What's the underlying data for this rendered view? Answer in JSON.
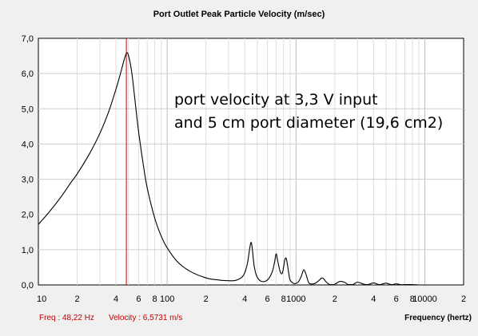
{
  "chart_data": {
    "type": "line",
    "title": "Port Outlet Peak Particle Velocity (m/sec)",
    "xlabel": "Frequency (hertz)",
    "ylabel": "",
    "x_scale": "log",
    "xlim": [
      10,
      20000
    ],
    "ylim": [
      0,
      7
    ],
    "y_ticks": [
      "0,0",
      "1,0",
      "2,0",
      "3,0",
      "4,0",
      "5,0",
      "6,0",
      "7,0"
    ],
    "x_tick_labels": [
      {
        "value": 10,
        "label": "10"
      },
      {
        "value": 20,
        "label": "2"
      },
      {
        "value": 40,
        "label": "4"
      },
      {
        "value": 60,
        "label": "6"
      },
      {
        "value": 80,
        "label": "8"
      },
      {
        "value": 100,
        "label": "100"
      },
      {
        "value": 200,
        "label": "2"
      },
      {
        "value": 400,
        "label": "4"
      },
      {
        "value": 600,
        "label": "6"
      },
      {
        "value": 800,
        "label": "8"
      },
      {
        "value": 1000,
        "label": "1000"
      },
      {
        "value": 2000,
        "label": "2"
      },
      {
        "value": 4000,
        "label": "4"
      },
      {
        "value": 6000,
        "label": "6"
      },
      {
        "value": 8000,
        "label": "8"
      },
      {
        "value": 10000,
        "label": "10000"
      },
      {
        "value": 20000,
        "label": "2"
      }
    ],
    "grid": true,
    "series": [
      {
        "color": "#000000",
        "x": [
          10,
          12,
          15,
          18,
          20,
          25,
          30,
          35,
          40,
          43,
          46,
          48.2,
          50,
          53,
          56,
          60,
          65,
          70,
          80,
          90,
          100,
          120,
          150,
          200,
          250,
          300,
          340,
          380,
          400,
          420,
          440,
          450,
          460,
          470,
          480,
          500,
          540,
          600,
          650,
          680,
          700,
          720,
          750,
          780,
          800,
          820,
          840,
          860,
          880,
          900,
          950,
          1000,
          1050,
          1100,
          1150,
          1200,
          1250,
          1300,
          1400,
          1500,
          1600,
          1700,
          1800,
          1900,
          2000,
          2200,
          2400,
          2500,
          2600,
          2800,
          3000,
          3300,
          3500,
          3700,
          4000,
          4300,
          4500,
          5000,
          5500,
          6000,
          6500,
          7000,
          8000,
          9000,
          10000,
          12000,
          15000,
          20000
        ],
        "y": [
          1.72,
          2.05,
          2.5,
          2.92,
          3.15,
          3.73,
          4.3,
          4.9,
          5.55,
          5.95,
          6.35,
          6.57,
          6.52,
          6.05,
          5.3,
          4.35,
          3.45,
          2.75,
          1.9,
          1.38,
          1.05,
          0.66,
          0.39,
          0.2,
          0.14,
          0.12,
          0.13,
          0.22,
          0.35,
          0.62,
          1.1,
          1.2,
          0.95,
          0.62,
          0.42,
          0.22,
          0.1,
          0.14,
          0.35,
          0.62,
          0.88,
          0.7,
          0.4,
          0.32,
          0.5,
          0.72,
          0.75,
          0.55,
          0.3,
          0.14,
          0.05,
          0.04,
          0.1,
          0.25,
          0.43,
          0.28,
          0.08,
          0.03,
          0.04,
          0.12,
          0.2,
          0.1,
          0.02,
          0.01,
          0.02,
          0.1,
          0.07,
          0.02,
          0.01,
          0.02,
          0.08,
          0.03,
          0.01,
          0.02,
          0.06,
          0.02,
          0.01,
          0.05,
          0.01,
          0.03,
          0.01,
          0.01,
          0.01,
          0.0,
          0.0,
          0.0,
          0.0,
          0.0
        ]
      }
    ],
    "cursor": {
      "x": 48.2,
      "color": "#c00000"
    },
    "annotation_lines": [
      "port velocity at 3,3 V input",
      "and 5 cm port diameter (19,6 cm2)"
    ],
    "status": {
      "freq": "Freq : 48,22 Hz",
      "velocity": "Velocity : 6,5731 m/s"
    }
  }
}
